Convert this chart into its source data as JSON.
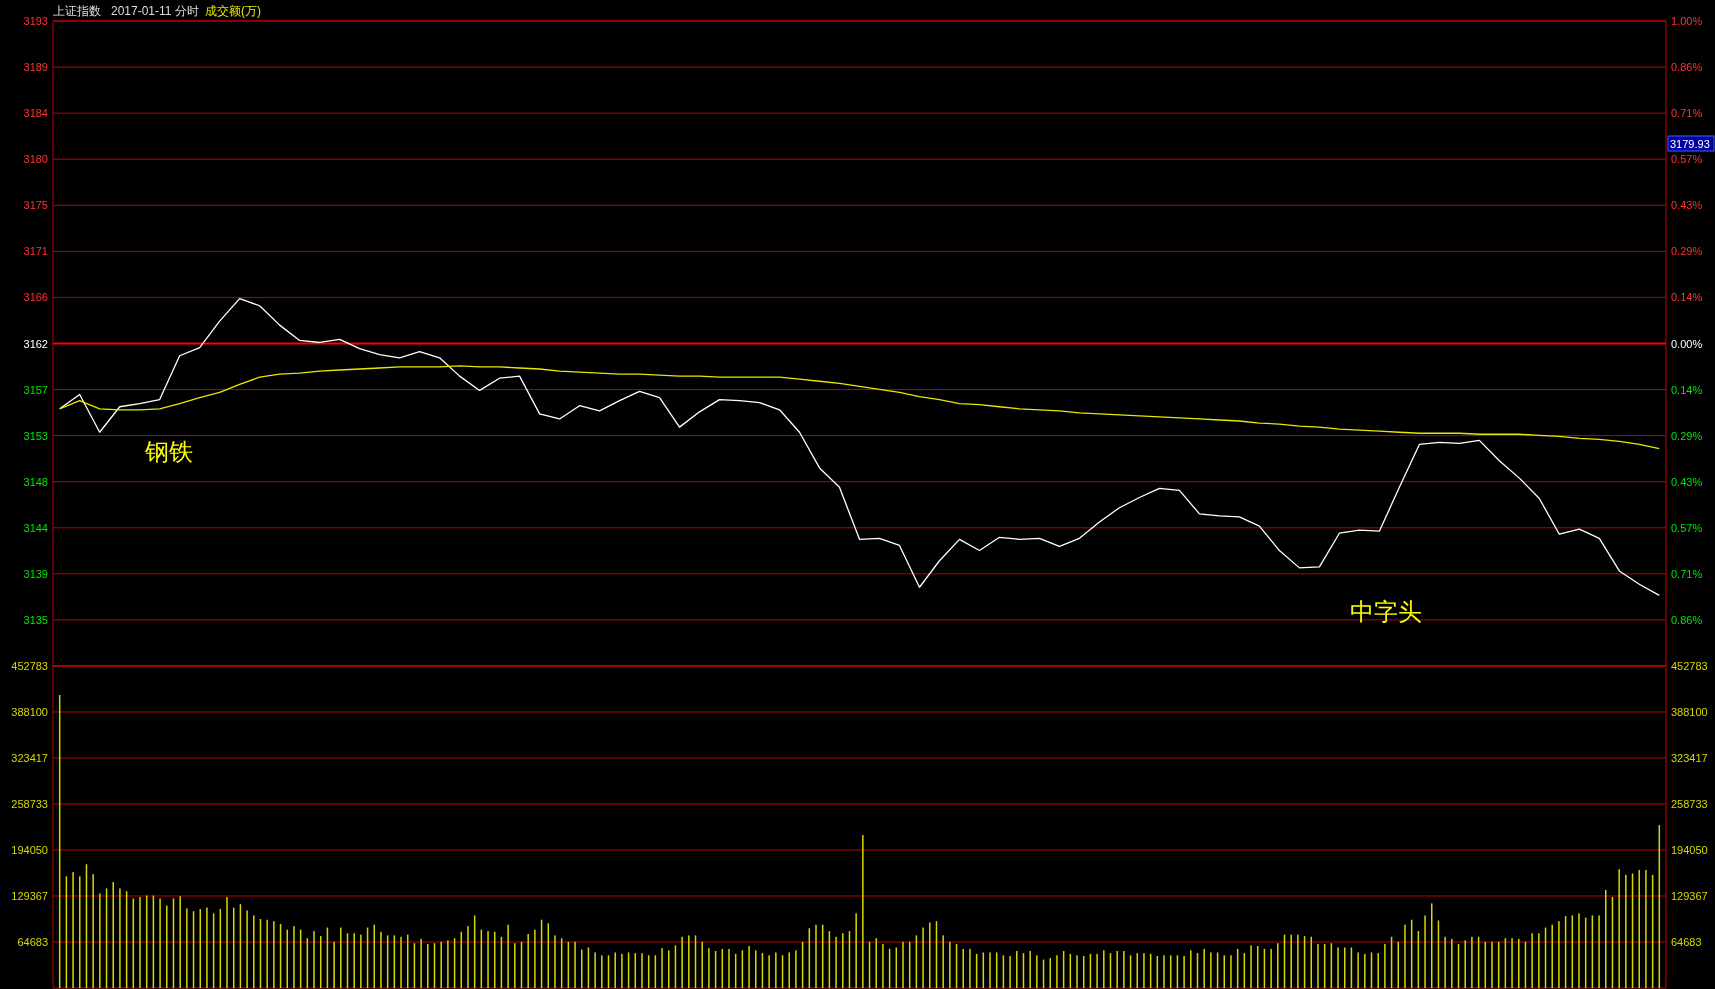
{
  "chart_data": [
    {
      "type": "line",
      "title": "上证指数",
      "subtitle": "2017-01-11 分时",
      "categories": [
        null,
        null,
        null,
        null,
        null,
        null,
        null,
        null,
        null,
        null,
        null,
        null,
        null,
        null,
        null,
        null,
        null,
        null,
        null,
        null,
        null,
        null,
        null,
        null,
        null,
        null,
        null,
        null,
        null,
        null,
        null,
        null,
        null,
        null,
        null,
        null,
        null,
        null,
        null,
        null,
        null,
        null,
        null,
        null,
        null,
        null,
        null,
        null,
        null,
        null,
        null,
        null,
        null,
        null,
        null,
        null,
        null,
        null,
        null,
        null,
        null,
        null,
        null,
        null,
        null,
        null,
        null,
        null,
        null,
        null,
        null,
        null,
        null,
        null,
        null,
        null,
        null,
        null,
        null,
        null,
        null
      ],
      "series": [
        {
          "color": "#ffffff",
          "values": [
            3155.2,
            3156.6,
            3152.9,
            3155.4,
            3155.7,
            3156.1,
            3160.4,
            3161.2,
            3163.8,
            3166.0,
            3165.3,
            3163.4,
            3161.9,
            3161.7,
            3162.0,
            3161.1,
            3160.5,
            3160.2,
            3160.8,
            3160.2,
            3158.4,
            3157.0,
            3158.2,
            3158.4,
            3154.7,
            3154.2,
            3155.5,
            3155.0,
            3156.0,
            3156.9,
            3156.3,
            3153.4,
            3154.9,
            3156.1,
            3156.0,
            3155.8,
            3155.1,
            3152.9,
            3149.4,
            3147.5,
            3142.4,
            3142.5,
            3141.8,
            3137.7,
            3140.3,
            3142.4,
            3141.3,
            3142.6,
            3142.4,
            3142.5,
            3141.7,
            3142.5,
            3144.1,
            3145.5,
            3146.5,
            3147.4,
            3147.2,
            3144.9,
            3144.7,
            3144.6,
            3143.7,
            3141.3,
            3139.6,
            3139.7,
            3143.0,
            3143.3,
            3143.2,
            3147.5,
            3151.7,
            3151.9,
            3151.8,
            3152.1,
            3150.1,
            3148.4,
            3146.4,
            3142.9,
            3143.4,
            3142.5,
            3139.3,
            3138.0,
            3136.9
          ]
        },
        {
          "color": "#e8e800",
          "values": [
            3155.2,
            3156.0,
            3155.2,
            3155.1,
            3155.1,
            3155.2,
            3155.7,
            3156.3,
            3156.8,
            3157.6,
            3158.3,
            3158.6,
            3158.7,
            3158.9,
            3159.0,
            3159.1,
            3159.2,
            3159.3,
            3159.3,
            3159.3,
            3159.4,
            3159.3,
            3159.3,
            3159.2,
            3159.1,
            3158.9,
            3158.8,
            3158.7,
            3158.6,
            3158.6,
            3158.5,
            3158.4,
            3158.4,
            3158.3,
            3158.3,
            3158.3,
            3158.3,
            3158.1,
            3157.9,
            3157.7,
            3157.4,
            3157.1,
            3156.8,
            3156.4,
            3156.1,
            3155.7,
            3155.6,
            3155.4,
            3155.2,
            3155.1,
            3155.0,
            3154.8,
            3154.7,
            3154.6,
            3154.5,
            3154.4,
            3154.3,
            3154.2,
            3154.1,
            3154.0,
            3153.8,
            3153.7,
            3153.5,
            3153.4,
            3153.2,
            3153.1,
            3153.0,
            3152.9,
            3152.8,
            3152.8,
            3152.8,
            3152.7,
            3152.7,
            3152.7,
            3152.6,
            3152.5,
            3152.3,
            3152.2,
            3152.0,
            3151.7,
            3151.3
          ]
        }
      ],
      "ylim": [
        3129.98,
        3193.22
      ],
      "yticks": [
        {
          "value": 3193.22,
          "label": "3193"
        },
        {
          "value": 3188.7,
          "label": "3189"
        },
        {
          "value": 3184.18,
          "label": "3184"
        },
        {
          "value": 3179.67,
          "label": "3180"
        },
        {
          "value": 3175.15,
          "label": "3175"
        },
        {
          "value": 3170.63,
          "label": "3171"
        },
        {
          "value": 3166.12,
          "label": "3166"
        },
        {
          "value": 3161.6,
          "label": "3162"
        },
        {
          "value": 3157.08,
          "label": "3157"
        },
        {
          "value": 3152.57,
          "label": "3153"
        },
        {
          "value": 3148.05,
          "label": "3148"
        },
        {
          "value": 3143.53,
          "label": "3144"
        },
        {
          "value": 3139.02,
          "label": "3139"
        },
        {
          "value": 3134.5,
          "label": "3135"
        }
      ],
      "y2lim": [
        -1,
        1
      ],
      "y2ticks": [
        {
          "value": 1,
          "label": "1.00%"
        },
        {
          "value": 0.857,
          "label": "0.86%"
        },
        {
          "value": 0.714,
          "label": "0.71%"
        },
        {
          "value": 0.571,
          "label": "0.57%"
        },
        {
          "value": 0.429,
          "label": "0.43%"
        },
        {
          "value": 0.286,
          "label": "0.29%"
        },
        {
          "value": 0.143,
          "label": "0.14%"
        },
        {
          "value": 0,
          "label": "0.00%"
        },
        {
          "value": -0.143,
          "label": "0.14%"
        },
        {
          "value": -0.286,
          "label": "0.29%"
        },
        {
          "value": -0.429,
          "label": "0.43%"
        },
        {
          "value": -0.571,
          "label": "0.57%"
        },
        {
          "value": -0.714,
          "label": "0.71%"
        },
        {
          "value": -0.857,
          "label": "0.86%"
        }
      ],
      "ref_lines": [
        {
          "axis": "y2",
          "value": 0
        }
      ],
      "grid": "y",
      "annotations": [
        "钢铁",
        "中字头",
        "3179.93",
        "成交额(万)"
      ]
    },
    {
      "type": "bar",
      "categories": [
        null,
        null,
        null,
        null,
        null,
        null,
        null,
        null,
        null,
        null,
        null,
        null,
        null,
        null,
        null,
        null,
        null,
        null,
        null,
        null,
        null,
        null,
        null,
        null,
        null,
        null,
        null,
        null,
        null,
        null,
        null,
        null,
        null,
        null,
        null,
        null,
        null,
        null,
        null,
        null,
        null,
        null,
        null,
        null,
        null,
        null,
        null,
        null,
        null,
        null,
        null,
        null,
        null,
        null,
        null,
        null,
        null,
        null,
        null,
        null,
        null,
        null,
        null,
        null,
        null,
        null,
        null,
        null,
        null,
        null,
        null,
        null,
        null,
        null,
        null,
        null,
        null,
        null,
        null,
        null,
        null,
        null,
        null,
        null,
        null,
        null,
        null,
        null,
        null,
        null,
        null,
        null,
        null,
        null,
        null,
        null,
        null,
        null,
        null,
        null,
        null,
        null,
        null,
        null,
        null,
        null,
        null,
        null,
        null,
        null,
        null,
        null,
        null,
        null,
        null,
        null,
        null,
        null,
        null,
        null,
        null,
        null,
        null,
        null,
        null,
        null,
        null,
        null,
        null,
        null,
        null,
        null,
        null,
        null,
        null,
        null,
        null,
        null,
        null,
        null,
        null,
        null,
        null,
        null,
        null,
        null,
        null,
        null,
        null,
        null,
        null,
        null,
        null,
        null,
        null,
        null,
        null,
        null,
        null,
        null,
        null,
        null,
        null,
        null,
        null,
        null,
        null,
        null,
        null,
        null,
        null,
        null,
        null,
        null,
        null,
        null,
        null,
        null,
        null,
        null,
        null,
        null,
        null,
        null,
        null,
        null,
        null,
        null,
        null,
        null,
        null,
        null,
        null,
        null,
        null,
        null,
        null,
        null,
        null,
        null,
        null,
        null,
        null,
        null,
        null,
        null,
        null,
        null,
        null,
        null,
        null,
        null,
        null,
        null,
        null,
        null,
        null,
        null,
        null,
        null,
        null,
        null,
        null,
        null,
        null,
        null,
        null,
        null,
        null,
        null,
        null,
        null,
        null,
        null,
        null,
        null,
        null,
        null,
        null,
        null
      ],
      "color": "#d8d800",
      "values": [
        412000,
        157000,
        163000,
        157000,
        174000,
        160000,
        133000,
        140000,
        149000,
        140000,
        136000,
        126000,
        128000,
        130000,
        130000,
        126000,
        116000,
        126000,
        129000,
        112000,
        108000,
        111000,
        113000,
        105000,
        111000,
        128000,
        113000,
        118000,
        109000,
        102000,
        97000,
        96000,
        94000,
        90000,
        82000,
        87000,
        82000,
        70000,
        80000,
        73000,
        85000,
        65000,
        85000,
        77000,
        77000,
        75000,
        85000,
        89000,
        79000,
        74000,
        74000,
        72000,
        75000,
        63000,
        69000,
        62000,
        63000,
        65000,
        67000,
        70000,
        79000,
        87000,
        102000,
        82000,
        80000,
        79000,
        72000,
        89000,
        63000,
        65000,
        76000,
        82000,
        96000,
        91000,
        74000,
        70000,
        65000,
        65000,
        54000,
        57000,
        50000,
        46000,
        46000,
        50000,
        48000,
        50000,
        49000,
        49000,
        46000,
        46000,
        56000,
        53000,
        60000,
        72000,
        74000,
        74000,
        65000,
        56000,
        52000,
        55000,
        55000,
        48000,
        53000,
        59000,
        53000,
        49000,
        46000,
        50000,
        46000,
        50000,
        53000,
        65000,
        84000,
        89000,
        89000,
        80000,
        72000,
        77000,
        80000,
        105000,
        215000,
        65000,
        70000,
        62000,
        55000,
        57000,
        65000,
        65000,
        74000,
        85000,
        92000,
        94000,
        74000,
        65000,
        62000,
        55000,
        55000,
        48000,
        50000,
        50000,
        50000,
        46000,
        45000,
        52000,
        49000,
        52000,
        46000,
        40000,
        42000,
        46000,
        52000,
        48000,
        46000,
        45000,
        48000,
        48000,
        53000,
        49000,
        52000,
        52000,
        46000,
        49000,
        49000,
        48000,
        45000,
        46000,
        46000,
        46000,
        45000,
        53000,
        49000,
        55000,
        50000,
        50000,
        46000,
        46000,
        55000,
        49000,
        60000,
        59000,
        55000,
        55000,
        63000,
        75000,
        75000,
        75000,
        73000,
        72000,
        62000,
        62000,
        63000,
        57000,
        57000,
        57000,
        50000,
        48000,
        50000,
        49000,
        62000,
        72000,
        65000,
        89000,
        96000,
        80000,
        102000,
        119000,
        95000,
        72000,
        69000,
        62000,
        67000,
        72000,
        72000,
        65000,
        65000,
        65000,
        70000,
        70000,
        69000,
        65000,
        77000,
        77000,
        85000,
        89000,
        94000,
        101000,
        102000,
        105000,
        99000,
        102000,
        102000,
        138000,
        128000,
        167000,
        159000,
        161000,
        166000,
        166000,
        159000,
        229000
      ],
      "ylim": [
        0,
        452783
      ],
      "yticks": [
        64683,
        129367,
        194050,
        258733,
        323417,
        388100,
        452783
      ],
      "y2lim": [
        0,
        452783
      ],
      "y2ticks": [
        64683,
        129367,
        194050,
        258733,
        323417,
        388100,
        452783
      ],
      "grid": "y"
    }
  ]
}
